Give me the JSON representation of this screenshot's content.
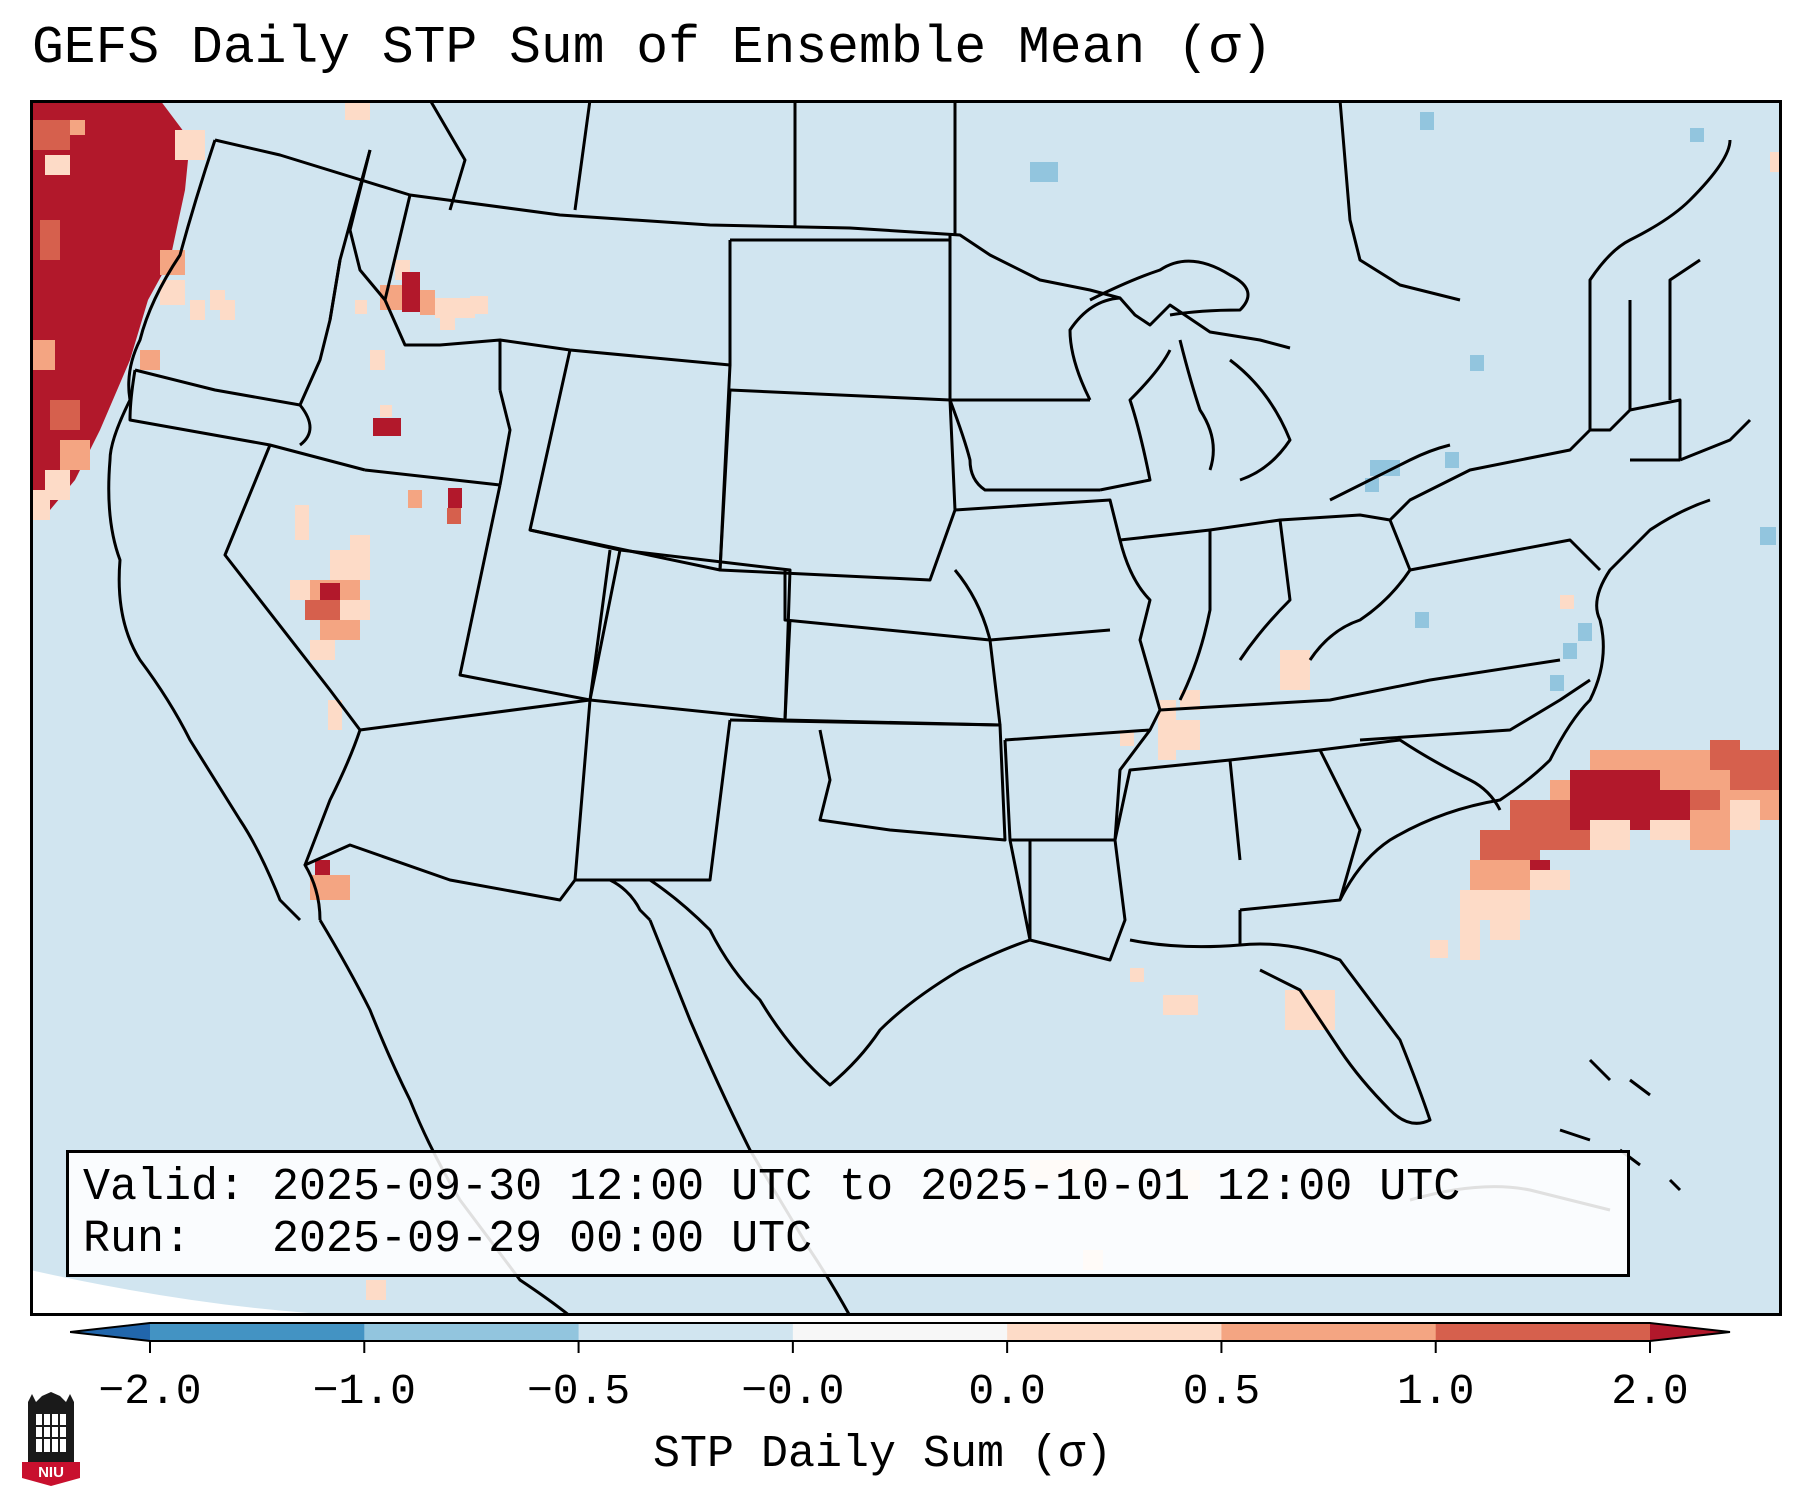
{
  "title": "GEFS Daily STP Sum of Ensemble Mean (σ)",
  "info": {
    "valid": "Valid: 2025-09-30 12:00 UTC to 2025-10-01 12:00 UTC",
    "run": "Run:   2025-09-29 00:00 UTC"
  },
  "colorbar": {
    "label": "STP Daily Sum (σ)",
    "ticks": [
      "−2.0",
      "−1.0",
      "−0.5",
      "−0.0",
      "0.0",
      "0.5",
      "1.0",
      "2.0"
    ],
    "colors": [
      "#2166ac",
      "#4393c3",
      "#92c5de",
      "#d1e5f0",
      "#f7f7f7",
      "#fddbc7",
      "#f4a582",
      "#d6604d",
      "#b2182b"
    ]
  },
  "logo": {
    "text": "NIU",
    "color": "#c8102e"
  },
  "map": {
    "background_color": "#d1e5f0",
    "line_color": "#000000"
  }
}
